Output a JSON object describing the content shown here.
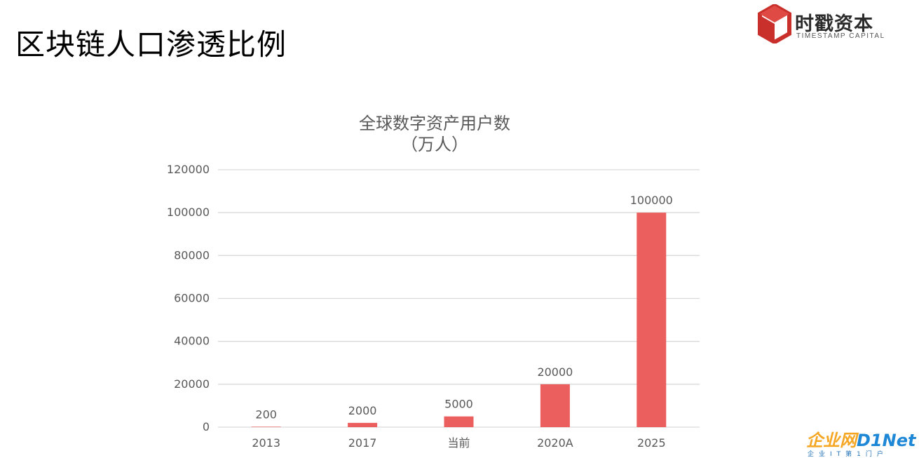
{
  "slide": {
    "title": "区块链人口渗透比例"
  },
  "brand": {
    "name": "时戳资本",
    "subtitle": "TIMESTAMP CAPITAL",
    "accent_color": "#c9302c",
    "icon": "cube-logo-icon"
  },
  "watermark": {
    "main_cn": "企业网",
    "main_en": "D1Net",
    "subtitle": "企业IT第1门户"
  },
  "chart_data": {
    "type": "bar",
    "title_line1": "全球数字资产用户数",
    "title_line2": "（万人）",
    "categories": [
      "2013",
      "2017",
      "当前",
      "2020A",
      "2025"
    ],
    "values": [
      200,
      2000,
      5000,
      20000,
      100000
    ],
    "value_labels": [
      "200",
      "2000",
      "5000",
      "20000",
      "100000"
    ],
    "y_ticks": [
      "0",
      "20000",
      "40000",
      "60000",
      "80000",
      "100000",
      "120000"
    ],
    "ylim": [
      0,
      120000
    ],
    "grid": true,
    "legend": "none",
    "bar_color": "#ec5f5f",
    "grid_color": "#d9d9d9",
    "text_color": "#595959"
  }
}
